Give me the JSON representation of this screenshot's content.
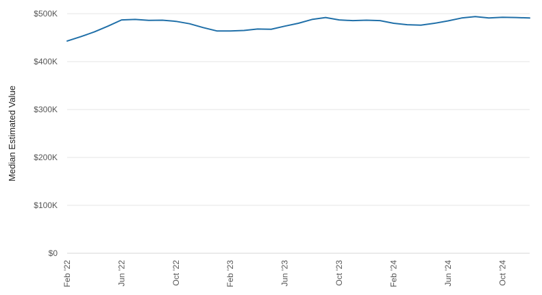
{
  "chart_data": {
    "type": "line",
    "ylabel": "Median Estimated Value",
    "ylim": [
      0,
      500000
    ],
    "y_ticks": [
      {
        "value": 0,
        "label": "$0"
      },
      {
        "value": 100000,
        "label": "$100K"
      },
      {
        "value": 200000,
        "label": "$200K"
      },
      {
        "value": 300000,
        "label": "$300K"
      },
      {
        "value": 400000,
        "label": "$400K"
      },
      {
        "value": 500000,
        "label": "$500K"
      }
    ],
    "x_ticks": [
      "Feb '22",
      "Jun '22",
      "Oct '22",
      "Feb '23",
      "Jun '23",
      "Oct '23",
      "Feb '24",
      "Jun '24",
      "Oct '24"
    ],
    "grid": true,
    "line_color": "#1f6fa8",
    "series": [
      {
        "x": [
          "2022-02",
          "2022-03",
          "2022-04",
          "2022-05",
          "2022-06",
          "2022-07",
          "2022-08",
          "2022-09",
          "2022-10",
          "2022-11",
          "2022-12",
          "2023-01",
          "2023-02",
          "2023-03",
          "2023-04",
          "2023-05",
          "2023-06",
          "2023-07",
          "2023-08",
          "2023-09",
          "2023-10",
          "2023-11",
          "2023-12",
          "2024-01",
          "2024-02",
          "2024-03",
          "2024-04",
          "2024-05",
          "2024-06",
          "2024-07",
          "2024-08",
          "2024-09",
          "2024-10",
          "2024-11",
          "2024-12"
        ],
        "values": [
          443000,
          452000,
          462000,
          474000,
          487000,
          488000,
          486000,
          486500,
          484000,
          479000,
          471000,
          464000,
          464000,
          465000,
          468000,
          467500,
          474000,
          480000,
          488000,
          492000,
          487000,
          485500,
          486500,
          485500,
          480000,
          477000,
          476000,
          480000,
          485000,
          491000,
          494000,
          491000,
          492500,
          492000,
          491000
        ]
      }
    ]
  }
}
